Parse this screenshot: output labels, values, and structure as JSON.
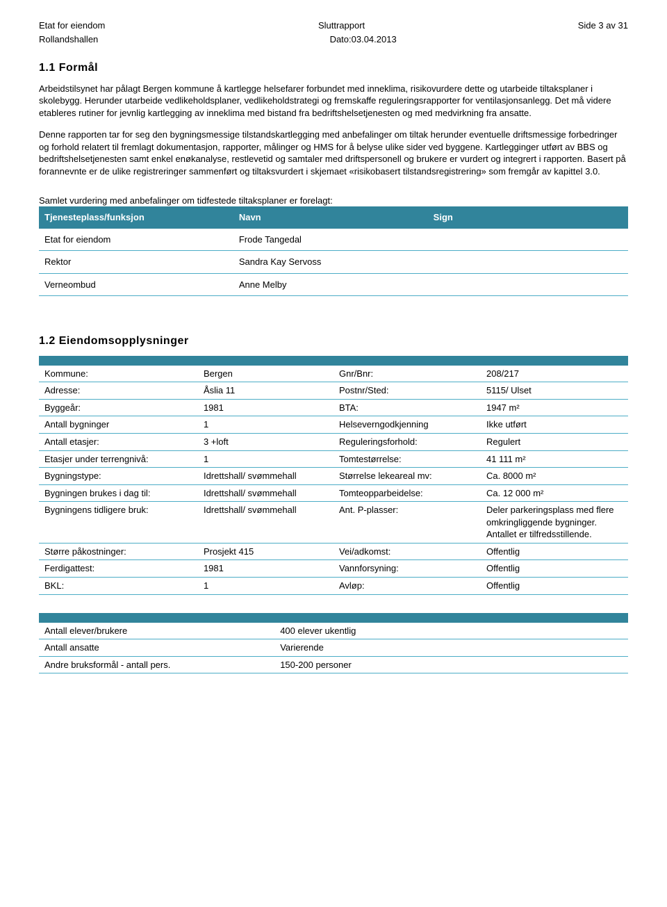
{
  "header": {
    "left1": "Etat for eiendom",
    "left2": "Rollandshallen",
    "center1": "Sluttrapport",
    "center2": "Dato:03.04.2013",
    "right1": "Side 3 av 31"
  },
  "section1": {
    "title": "1.1  Formål",
    "p1": "Arbeidstilsynet har pålagt Bergen kommune å kartlegge helsefarer forbundet med inneklima, risikovurdere dette og utarbeide tiltaksplaner i skolebygg. Herunder utarbeide vedlikeholdsplaner, vedlikeholdstrategi og fremskaffe reguleringsrapporter for ventilasjonsanlegg. Det må videre etableres rutiner for jevnlig kartlegging av inneklima med bistand fra bedriftshelsetjenesten og med medvirkning fra ansatte.",
    "p2": "Denne rapporten tar for seg den bygningsmessige tilstandskartlegging med anbefalinger om tiltak herunder eventuelle driftsmessige forbedringer og forhold relatert til fremlagt dokumentasjon, rapporter, målinger og HMS for å belyse ulike sider ved byggene. Kartlegginger utført av BBS og bedriftshelsetjenesten samt enkel enøkanalyse, restlevetid og samtaler med driftspersonell og brukere er vurdert og integrert i rapporten. Basert på forannevnte er de ulike registreringer sammenført og tiltaksvurdert i skjemaet «risikobasert tilstandsregistrering» som fremgår av kapittel 3.0.",
    "intro": "Samlet vurdering med anbefalinger om tidfestede tiltaksplaner er forelagt:"
  },
  "persons": {
    "headers": [
      "Tjenesteplass/funksjon",
      "Navn",
      "Sign"
    ],
    "rows": [
      [
        "Etat for eiendom",
        "Frode Tangedal",
        ""
      ],
      [
        "Rektor",
        "Sandra Kay Servoss",
        ""
      ],
      [
        "Verneombud",
        "Anne Melby",
        ""
      ]
    ]
  },
  "section2": {
    "title": "1.2  Eiendomsopplysninger"
  },
  "props": {
    "rows": [
      [
        "Kommune:",
        "Bergen",
        "Gnr/Bnr:",
        "208/217"
      ],
      [
        "Adresse:",
        "Åslia 11",
        "Postnr/Sted:",
        "5115/ Ulset"
      ],
      [
        "Byggeår:",
        "1981",
        "BTA:",
        "1947 m²"
      ],
      [
        "Antall bygninger",
        "1",
        "Helseverngodkjenning",
        "Ikke utført"
      ],
      [
        "Antall etasjer:",
        "3 +loft",
        "Reguleringsforhold:",
        "Regulert"
      ],
      [
        "Etasjer under terrengnivå:",
        "1",
        "Tomtestørrelse:",
        "41 111 m²"
      ],
      [
        "Bygningstype:",
        "Idrettshall/ svømmehall",
        "Størrelse lekeareal mv:",
        "Ca. 8000 m²"
      ],
      [
        "Bygningen brukes i dag til:",
        "Idrettshall/ svømmehall",
        "Tomteopparbeidelse:",
        "Ca. 12 000 m²"
      ],
      [
        "Bygningens tidligere bruk:",
        "Idrettshall/ svømmehall",
        "Ant. P-plasser:",
        "Deler parkeringsplass med flere omkringliggende bygninger. Antallet er tilfredsstillende."
      ],
      [
        "Større påkostninger:",
        "Prosjekt 415",
        "Vei/adkomst:",
        "Offentlig"
      ],
      [
        "Ferdigattest:",
        "1981",
        "Vannforsyning:",
        "Offentlig"
      ],
      [
        "BKL:",
        "1",
        "Avløp:",
        "Offentlig"
      ]
    ]
  },
  "usage": {
    "rows": [
      [
        "Antall elever/brukere",
        "400 elever ukentlig"
      ],
      [
        "Antall ansatte",
        "Varierende"
      ],
      [
        "Andre bruksformål - antall pers.",
        "150-200 personer"
      ]
    ]
  }
}
